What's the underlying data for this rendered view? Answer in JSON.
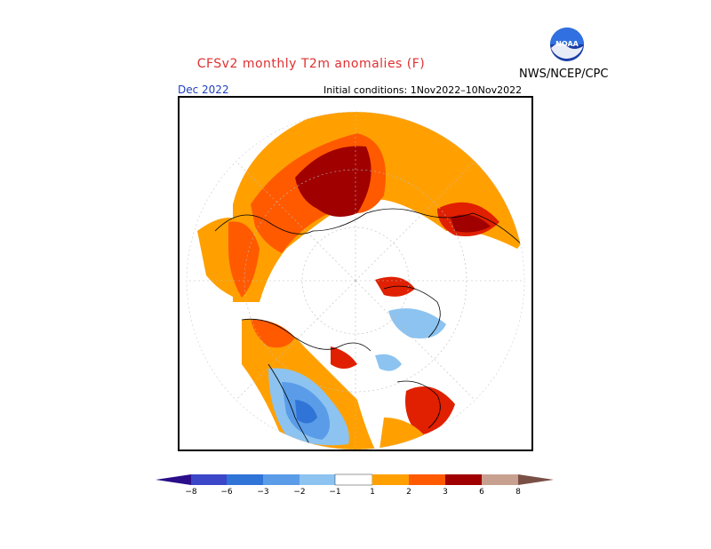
{
  "header": {
    "title": "CFSv2 monthly T2m anomalies (F)",
    "month": "Dec 2022",
    "initial_conditions": "Initial conditions: 1Nov2022–10Nov2022",
    "agency": "NWS/NCEP/CPC",
    "logo_text": "NOAA"
  },
  "colors": {
    "title": "#e03030",
    "month": "#2040c0",
    "neg_8": "#2a0e8a",
    "neg_6": "#3c46c8",
    "neg_3": "#2f74d6",
    "neg_2": "#5a9ce8",
    "neg_1": "#8cc3f0",
    "neutral": "#ffffff",
    "pos_1": "#ffa000",
    "pos_2": "#ff5a00",
    "pos_3": "#e02000",
    "pos_4": "#a00000",
    "pos_6": "#c8a090",
    "pos_8": "#7a5046",
    "land_outline": "#000000"
  },
  "colorbar": {
    "ticks": [
      "−8",
      "−6",
      "−3",
      "−2",
      "−1",
      "1",
      "2",
      "3",
      "6",
      "8"
    ]
  },
  "map": {
    "projection": "north polar stereographic",
    "regions": [
      {
        "name": "eastern-siberia-pacific",
        "anomaly": "warm"
      },
      {
        "name": "central-siberia",
        "anomaly": "strong warm"
      },
      {
        "name": "europe",
        "anomaly": "warm"
      },
      {
        "name": "western-north-america",
        "anomaly": "cold"
      },
      {
        "name": "greenland-canada",
        "anomaly": "mixed"
      }
    ]
  }
}
